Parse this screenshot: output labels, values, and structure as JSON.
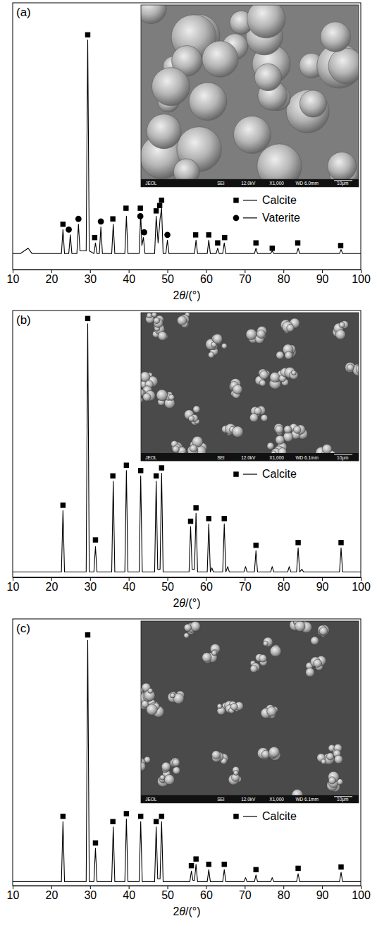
{
  "chart_data": [
    {
      "type": "line",
      "title": "(a)",
      "x_label": "2θ/(°)",
      "xlim": [
        10,
        100
      ],
      "xticks": [
        10,
        20,
        30,
        40,
        50,
        60,
        70,
        80,
        90,
        100
      ],
      "ylim": [
        0,
        100
      ],
      "tick_labels": "x",
      "legend": "right",
      "annotations": [
        "JEOL",
        "SEI",
        "12.0kV",
        "X1,000",
        "WD 6.0mm",
        "10μm"
      ],
      "series": [
        {
          "type": "line",
          "color": "#000000",
          "x": [
            10,
            12,
            14,
            15,
            17,
            20,
            22.6,
            23.0,
            23.4,
            24.5,
            24.9,
            25.3,
            26.6,
            27.0,
            27.4,
            29.0,
            29.4,
            29.8,
            31.0,
            31.4,
            31.8,
            32.4,
            32.8,
            33.2,
            35.6,
            36.0,
            36.4,
            39.0,
            39.4,
            39.8,
            42.7,
            43.1,
            43.4,
            43.8,
            44.2,
            46.7,
            47.1,
            47.6,
            48.1,
            48.5,
            48.9,
            49.6,
            50.0,
            50.4,
            57.0,
            57.4,
            57.8,
            60.3,
            60.7,
            61.1,
            62.6,
            63.0,
            63.4,
            64.3,
            64.7,
            65.1,
            72.5,
            72.9,
            73.3,
            76.7,
            77.1,
            77.5,
            83.4,
            83.8,
            84.2,
            94.5,
            94.9,
            95.3,
            100
          ],
          "values": [
            6,
            6,
            8,
            6,
            6,
            6,
            6,
            15,
            6,
            6,
            13,
            6,
            6,
            17,
            7,
            7,
            86,
            7,
            6,
            10,
            6,
            6,
            16,
            6,
            6,
            17,
            6,
            6,
            20,
            6,
            6,
            21,
            9,
            12,
            6,
            6,
            20,
            10,
            19,
            23,
            6,
            6,
            11,
            6,
            6,
            11,
            6,
            6,
            11,
            6,
            6,
            8,
            6,
            6,
            10,
            6,
            6,
            8,
            6,
            6,
            7,
            6,
            6,
            8,
            6,
            6,
            7.5,
            6,
            6
          ]
        },
        {
          "name": "Calcite",
          "type": "scatter",
          "marker": "square",
          "color": "#000000",
          "x": [
            23.0,
            29.4,
            31.2,
            35.9,
            39.3,
            43.0,
            47.1,
            48.0,
            48.5,
            57.3,
            60.7,
            63.0,
            64.8,
            72.9,
            77.1,
            83.7,
            94.8
          ],
          "values": [
            17,
            88,
            12,
            19,
            23,
            23,
            22,
            24,
            26,
            13,
            13,
            10,
            12,
            10,
            8,
            10,
            9
          ]
        },
        {
          "name": "Vaterite",
          "type": "scatter",
          "marker": "circle",
          "color": "#000000",
          "x": [
            24.5,
            27.0,
            32.8,
            43.0,
            44.0,
            50.0
          ],
          "values": [
            15,
            19,
            18,
            20,
            14,
            13
          ]
        }
      ]
    },
    {
      "type": "line",
      "title": "(b)",
      "x_label": "2θ/(°)",
      "xlim": [
        10,
        100
      ],
      "xticks": [
        10,
        20,
        30,
        40,
        50,
        60,
        70,
        80,
        90,
        100
      ],
      "ylim": [
        0,
        100
      ],
      "tick_labels": "x",
      "legend": "right",
      "annotations": [
        "JEOL",
        "SEI",
        "12.0kV",
        "X1,000",
        "WD 6.1mm",
        "10μm"
      ],
      "series": [
        {
          "type": "line",
          "color": "#000000",
          "x": [
            10,
            15,
            20,
            22.6,
            23.0,
            23.4,
            29.0,
            29.4,
            29.8,
            31.0,
            31.4,
            31.8,
            35.6,
            36.0,
            36.4,
            39.0,
            39.4,
            39.8,
            42.7,
            43.1,
            43.5,
            46.7,
            47.1,
            47.5,
            48.1,
            48.5,
            48.9,
            55.6,
            56.0,
            56.4,
            57.0,
            57.4,
            57.8,
            60.3,
            60.7,
            61.1,
            61.5,
            61.9,
            64.3,
            64.7,
            65.1,
            65.6,
            66.0,
            69.8,
            70.2,
            70.6,
            72.5,
            72.9,
            73.3,
            76.7,
            77.1,
            77.5,
            81.1,
            81.5,
            81.9,
            83.4,
            83.8,
            84.2,
            84.8,
            85.2,
            94.5,
            94.9,
            95.3,
            100
          ],
          "values": [
            2,
            2,
            2,
            2,
            25,
            2,
            2,
            95,
            2,
            2,
            11.5,
            2,
            2,
            36,
            2,
            2,
            40,
            2,
            2,
            38,
            2,
            2,
            36,
            3,
            3,
            39,
            2,
            2,
            19,
            3,
            3,
            24,
            2,
            2,
            20,
            2,
            3.5,
            2,
            2,
            20,
            2,
            4,
            2,
            2,
            4,
            2,
            2,
            10,
            2,
            2,
            4,
            2,
            2,
            4,
            2,
            2,
            11,
            2,
            3,
            2,
            2,
            11,
            2,
            2
          ]
        },
        {
          "name": "Calcite",
          "type": "scatter",
          "marker": "square",
          "color": "#000000",
          "x": [
            23.0,
            29.4,
            31.4,
            35.9,
            39.4,
            43.1,
            47.1,
            48.5,
            56.0,
            57.4,
            60.7,
            64.7,
            72.9,
            83.8,
            94.9
          ],
          "values": [
            27,
            97,
            14,
            38,
            42,
            40,
            38,
            41,
            21,
            26,
            22,
            22,
            12,
            13,
            13
          ]
        }
      ]
    },
    {
      "type": "line",
      "title": "(c)",
      "x_label": "2θ/(°)",
      "xlim": [
        10,
        100
      ],
      "xticks": [
        10,
        20,
        30,
        40,
        50,
        60,
        70,
        80,
        90,
        100
      ],
      "ylim": [
        0,
        100
      ],
      "tick_labels": "x",
      "legend": "right",
      "annotations": [
        "JEOL",
        "SEI",
        "12.0kV",
        "X1,000",
        "WD 6.1mm",
        "10μm"
      ],
      "series": [
        {
          "type": "line",
          "color": "#000000",
          "x": [
            10,
            15,
            20,
            22.6,
            23.0,
            23.4,
            29.0,
            29.4,
            29.8,
            31.0,
            31.4,
            31.8,
            35.6,
            36.0,
            36.4,
            39.0,
            39.4,
            39.8,
            42.7,
            43.1,
            43.5,
            46.7,
            47.1,
            47.5,
            48.1,
            48.5,
            48.9,
            55.8,
            56.2,
            56.6,
            57.0,
            57.4,
            57.8,
            60.3,
            60.7,
            61.1,
            64.3,
            64.7,
            65.1,
            69.8,
            70.2,
            70.6,
            72.5,
            72.9,
            73.3,
            76.7,
            77.1,
            77.5,
            83.4,
            83.8,
            84.2,
            94.5,
            94.9,
            95.3,
            100
          ],
          "values": [
            1.5,
            1.5,
            1.5,
            1.5,
            24,
            1.5,
            1.5,
            92,
            1.5,
            1.5,
            14,
            1.5,
            1.5,
            22,
            1.5,
            1.5,
            25,
            1.5,
            1.5,
            24,
            1.5,
            1.5,
            22,
            2.5,
            2.5,
            24,
            1.5,
            1.5,
            5.5,
            2,
            2,
            8,
            1.5,
            1.5,
            6,
            1.5,
            1.5,
            6,
            1.5,
            1.5,
            3,
            1.5,
            1.5,
            4,
            1.5,
            1.5,
            3,
            1.5,
            1.5,
            4.5,
            1.5,
            1.5,
            5,
            1.5,
            1.5
          ]
        },
        {
          "name": "Calcite",
          "type": "scatter",
          "marker": "square",
          "color": "#000000",
          "x": [
            23.0,
            29.4,
            31.4,
            35.9,
            39.4,
            43.1,
            47.1,
            48.5,
            56.2,
            57.4,
            60.7,
            64.7,
            72.9,
            83.8,
            94.9
          ],
          "values": [
            26,
            94,
            16,
            24,
            27,
            26,
            24,
            26,
            7.5,
            10,
            8,
            8,
            6,
            6.5,
            7
          ]
        }
      ]
    }
  ]
}
